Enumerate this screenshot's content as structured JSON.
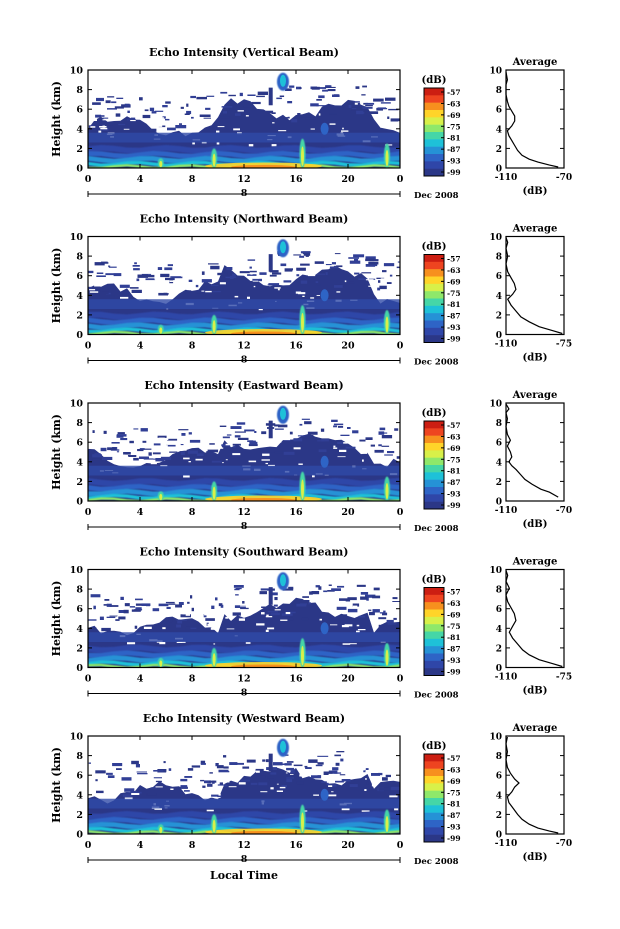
{
  "figure": {
    "xlabel": "Local Time",
    "date_label": "Dec 2008",
    "mid_day_label": "8",
    "colorbar_unit": "(dB)",
    "colorbar_ticks": [
      "-57",
      "-63",
      "-69",
      "-75",
      "-81",
      "-87",
      "-93",
      "-99"
    ],
    "colorbar_colors": [
      "#cc1e12",
      "#ee4420",
      "#f7901e",
      "#ffd429",
      "#d8f049",
      "#8fe86a",
      "#45d6a7",
      "#1ec1d8",
      "#2592d6",
      "#2e64c6",
      "#2f46a8",
      "#2b3787"
    ]
  },
  "chart_data": [
    {
      "type": "heatmap",
      "title": "Echo Intensity (Vertical Beam)",
      "ylabel": "Height (km)",
      "xlim": [
        0,
        24
      ],
      "ylim": [
        0,
        10
      ],
      "xticks": [
        "0",
        "4",
        "8",
        "12",
        "16",
        "20",
        "0"
      ],
      "yticks": [
        "0",
        "2",
        "4",
        "6",
        "8",
        "10"
      ],
      "profile": {
        "title": "Average",
        "xlabel": "(dB)",
        "xticks": [
          "-110",
          "-70"
        ],
        "xlim": [
          -110,
          -70
        ],
        "points": [
          [
            -74,
            0.1
          ],
          [
            -80,
            0.3
          ],
          [
            -88,
            0.6
          ],
          [
            -94,
            0.9
          ],
          [
            -99,
            1.3
          ],
          [
            -102,
            1.8
          ],
          [
            -104,
            2.3
          ],
          [
            -106,
            2.8
          ],
          [
            -108,
            3.3
          ],
          [
            -109,
            3.8
          ],
          [
            -106,
            4.3
          ],
          [
            -104,
            4.8
          ],
          [
            -104,
            5.3
          ],
          [
            -106,
            5.8
          ],
          [
            -108,
            6.3
          ],
          [
            -109,
            6.8
          ],
          [
            -110,
            7.5
          ],
          [
            -110,
            8.5
          ],
          [
            -109,
            9.0
          ],
          [
            -110,
            9.8
          ]
        ]
      }
    },
    {
      "type": "heatmap",
      "title": "Echo Intensity (Northward Beam)",
      "ylabel": "Height (km)",
      "xlim": [
        0,
        24
      ],
      "ylim": [
        0,
        10
      ],
      "xticks": [
        "0",
        "4",
        "8",
        "12",
        "16",
        "20",
        "0"
      ],
      "yticks": [
        "0",
        "2",
        "4",
        "6",
        "8",
        "10"
      ],
      "profile": {
        "title": "Average",
        "xlabel": "(dB)",
        "xticks": [
          "-110",
          "-75"
        ],
        "xlim": [
          -110,
          -75
        ],
        "points": [
          [
            -76,
            0.1
          ],
          [
            -82,
            0.4
          ],
          [
            -90,
            0.8
          ],
          [
            -96,
            1.3
          ],
          [
            -101,
            1.8
          ],
          [
            -104,
            2.4
          ],
          [
            -107,
            3.0
          ],
          [
            -109,
            3.6
          ],
          [
            -106,
            4.1
          ],
          [
            -104,
            4.6
          ],
          [
            -105,
            5.2
          ],
          [
            -107,
            5.8
          ],
          [
            -109,
            6.4
          ],
          [
            -110,
            7.2
          ],
          [
            -109,
            8.0
          ],
          [
            -110,
            8.8
          ],
          [
            -109,
            9.4
          ],
          [
            -110,
            9.9
          ]
        ]
      }
    },
    {
      "type": "heatmap",
      "title": "Echo Intensity (Eastward Beam)",
      "ylabel": "Height (km)",
      "xlim": [
        0,
        24
      ],
      "ylim": [
        0,
        10
      ],
      "xticks": [
        "0",
        "4",
        "8",
        "12",
        "16",
        "20",
        "0"
      ],
      "yticks": [
        "0",
        "2",
        "4",
        "6",
        "8",
        "10"
      ],
      "profile": {
        "title": "Average",
        "xlabel": "(dB)",
        "xticks": [
          "-110",
          "-70"
        ],
        "xlim": [
          -110,
          -70
        ],
        "points": [
          [
            -74,
            0.4
          ],
          [
            -80,
            0.9
          ],
          [
            -86,
            1.2
          ],
          [
            -92,
            1.7
          ],
          [
            -97,
            2.2
          ],
          [
            -100,
            2.7
          ],
          [
            -103,
            3.2
          ],
          [
            -106,
            3.6
          ],
          [
            -108,
            4.0
          ],
          [
            -106,
            4.5
          ],
          [
            -107,
            5.0
          ],
          [
            -109,
            5.6
          ],
          [
            -107,
            6.2
          ],
          [
            -109,
            6.8
          ],
          [
            -110,
            7.6
          ],
          [
            -109,
            8.4
          ],
          [
            -110,
            9.0
          ],
          [
            -108,
            9.4
          ],
          [
            -110,
            9.9
          ]
        ]
      }
    },
    {
      "type": "heatmap",
      "title": "Echo Intensity (Southward Beam)",
      "ylabel": "Height (km)",
      "xlim": [
        0,
        24
      ],
      "ylim": [
        0,
        10
      ],
      "xticks": [
        "0",
        "4",
        "8",
        "12",
        "16",
        "20",
        "0"
      ],
      "yticks": [
        "0",
        "2",
        "4",
        "6",
        "8",
        "10"
      ],
      "profile": {
        "title": "Average",
        "xlabel": "(dB)",
        "xticks": [
          "-110",
          "-75"
        ],
        "xlim": [
          -110,
          -75
        ],
        "points": [
          [
            -76,
            0.1
          ],
          [
            -82,
            0.4
          ],
          [
            -90,
            0.8
          ],
          [
            -96,
            1.3
          ],
          [
            -100,
            1.8
          ],
          [
            -103,
            2.4
          ],
          [
            -106,
            3.0
          ],
          [
            -108,
            3.6
          ],
          [
            -106,
            4.2
          ],
          [
            -104,
            4.8
          ],
          [
            -105,
            5.5
          ],
          [
            -107,
            6.1
          ],
          [
            -109,
            6.7
          ],
          [
            -110,
            7.4
          ],
          [
            -108,
            8.1
          ],
          [
            -110,
            8.8
          ],
          [
            -109,
            9.4
          ],
          [
            -110,
            9.9
          ]
        ]
      }
    },
    {
      "type": "heatmap",
      "title": "Echo Intensity (Westward Beam)",
      "ylabel": "Height (km)",
      "xlim": [
        0,
        24
      ],
      "ylim": [
        0,
        10
      ],
      "xticks": [
        "0",
        "4",
        "8",
        "12",
        "16",
        "20",
        "0"
      ],
      "yticks": [
        "0",
        "2",
        "4",
        "6",
        "8",
        "10"
      ],
      "profile": {
        "title": "Average",
        "xlabel": "(dB)",
        "xticks": [
          "-110",
          "-70"
        ],
        "xlim": [
          -110,
          -70
        ],
        "points": [
          [
            -74,
            0.1
          ],
          [
            -80,
            0.3
          ],
          [
            -88,
            0.6
          ],
          [
            -94,
            1.0
          ],
          [
            -99,
            1.5
          ],
          [
            -102,
            2.0
          ],
          [
            -105,
            2.6
          ],
          [
            -108,
            3.2
          ],
          [
            -109,
            3.8
          ],
          [
            -106,
            4.3
          ],
          [
            -104,
            4.8
          ],
          [
            -101,
            5.2
          ],
          [
            -104,
            5.6
          ],
          [
            -107,
            6.2
          ],
          [
            -109,
            6.8
          ],
          [
            -110,
            7.6
          ],
          [
            -109,
            8.4
          ],
          [
            -110,
            9.2
          ],
          [
            -109,
            9.9
          ]
        ]
      }
    }
  ]
}
